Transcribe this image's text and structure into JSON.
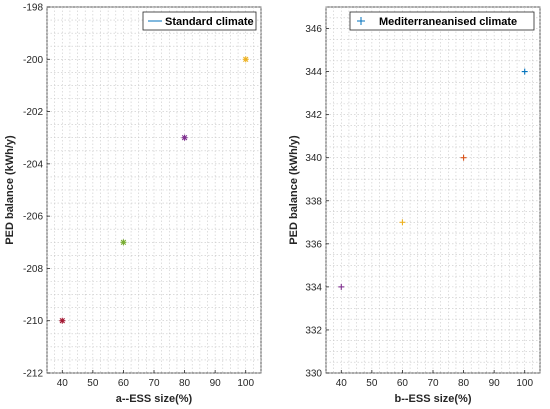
{
  "chart_data": [
    {
      "type": "scatter",
      "xlabel": "a--ESS size(%)",
      "ylabel": "PED balance (kWh/y)",
      "xlim": [
        35,
        105
      ],
      "ylim": [
        -212,
        -198
      ],
      "xticks": [
        40,
        50,
        60,
        70,
        80,
        90,
        100
      ],
      "yticks": [
        -212,
        -210,
        -208,
        -206,
        -204,
        -202,
        -200,
        -198
      ],
      "grid": true,
      "legend": {
        "position": "top-right",
        "label": "Standard climate",
        "color": "#0072BD",
        "symbol": "line"
      },
      "points": [
        {
          "x": 40,
          "y": -210,
          "color": "#A2142F",
          "marker": "asterisk"
        },
        {
          "x": 60,
          "y": -207,
          "color": "#77AC30",
          "marker": "asterisk"
        },
        {
          "x": 80,
          "y": -203,
          "color": "#7E2F8E",
          "marker": "asterisk"
        },
        {
          "x": 100,
          "y": -200,
          "color": "#EDB120",
          "marker": "asterisk"
        }
      ]
    },
    {
      "type": "scatter",
      "xlabel": "b--ESS size(%)",
      "ylabel": "PED balance (kWh/y)",
      "xlim": [
        35,
        105
      ],
      "ylim": [
        330,
        347
      ],
      "xticks": [
        40,
        50,
        60,
        70,
        80,
        90,
        100
      ],
      "yticks": [
        330,
        332,
        334,
        336,
        338,
        340,
        342,
        344,
        346
      ],
      "grid": true,
      "legend": {
        "position": "top-right",
        "label": "Mediterraneanised climate",
        "color": "#0072BD",
        "symbol": "plus"
      },
      "points": [
        {
          "x": 40,
          "y": 334,
          "color": "#7E2F8E",
          "marker": "plus"
        },
        {
          "x": 60,
          "y": 337,
          "color": "#EDB120",
          "marker": "plus"
        },
        {
          "x": 80,
          "y": 340,
          "color": "#D95319",
          "marker": "plus"
        },
        {
          "x": 100,
          "y": 344,
          "color": "#0072BD",
          "marker": "plus"
        }
      ]
    }
  ]
}
